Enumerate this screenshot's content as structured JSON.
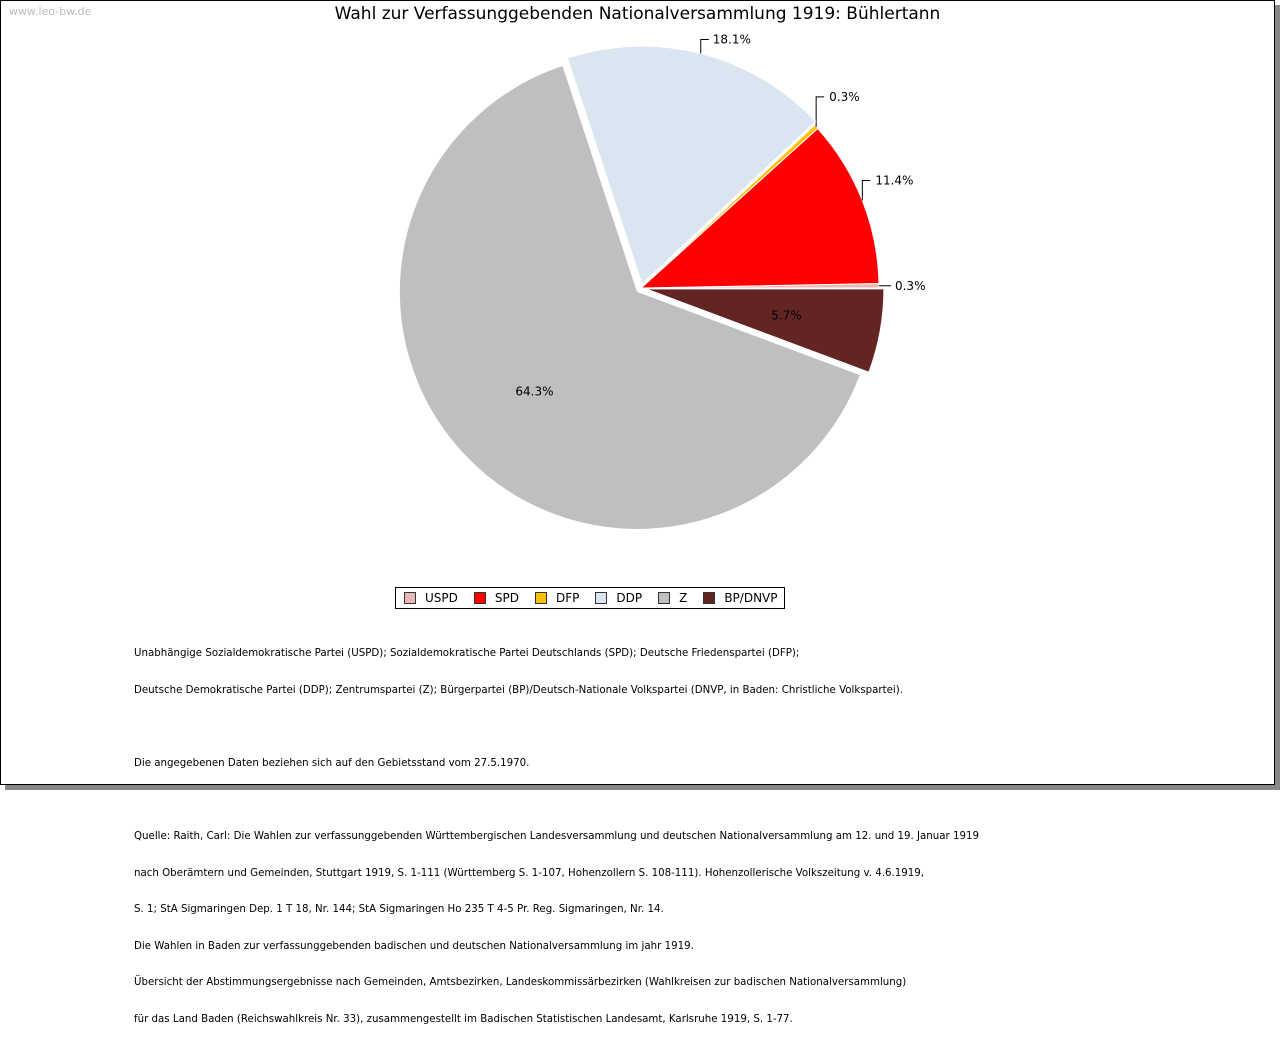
{
  "watermark": "www.leo-bw.de",
  "chart_data": {
    "type": "pie",
    "title": "Wahl zur Verfassunggebenden Nationalversammlung 1919: Bühlertann",
    "slices": [
      {
        "name": "USPD",
        "value": 0.3,
        "label": "0.3%",
        "color": "#e6b8b8"
      },
      {
        "name": "SPD",
        "value": 11.4,
        "label": "11.4%",
        "color": "#ff0000"
      },
      {
        "name": "DFP",
        "value": 0.3,
        "label": "0.3%",
        "color": "#ffc000"
      },
      {
        "name": "DDP",
        "value": 18.1,
        "label": "18.1%",
        "color": "#dbe5f1"
      },
      {
        "name": "Z",
        "value": 64.3,
        "label": "64.3%",
        "color": "#bfbfbf"
      },
      {
        "name": "BP/DNVP",
        "value": 5.7,
        "label": "5.7%",
        "color": "#632523"
      }
    ],
    "legend_position": "bottom"
  },
  "notes": {
    "parties": [
      "Unabhängige Sozialdemokratische Partei (USPD); Sozialdemokratische Partei Deutschlands (SPD); Deutsche Friedenspartei (DFP);",
      "Deutsche Demokratische Partei (DDP); Zentrumspartei (Z); Bürgerpartei (BP)/Deutsch-Nationale Volkspartei (DNVP, in Baden: Christliche Volkspartei)."
    ],
    "territory": "Die angegebenen Daten beziehen sich auf den Gebietsstand vom 27.5.1970.",
    "source": [
      "Quelle: Raith, Carl: Die Wahlen zur verfassunggebenden Württembergischen Landesversammlung und deutschen Nationalversammlung am 12. und 19. Januar 1919",
      "nach Oberämtern und Gemeinden, Stuttgart 1919, S. 1-111 (Württemberg S. 1-107, Hohenzollern S. 108-111). Hohenzollerische Volkszeitung v. 4.6.1919,",
      "S. 1; StA Sigmaringen Dep. 1 T 18, Nr. 144; StA Sigmaringen Ho 235 T 4-5 Pr. Reg. Sigmaringen, Nr. 14.",
      "Die Wahlen in Baden zur verfassunggebenden badischen und deutschen Nationalversammlung im jahr 1919.",
      "Übersicht der Abstimmungsergebnisse nach Gemeinden, Amtsbezirken, Landeskommissärbezirken (Wahlkreisen zur badischen Nationalversammlung)",
      "für das Land Baden (Reichswahlkreis Nr. 33), zusammengestellt im Badischen Statistischen Landesamt, Karlsruhe 1919, S. 1-77."
    ]
  }
}
